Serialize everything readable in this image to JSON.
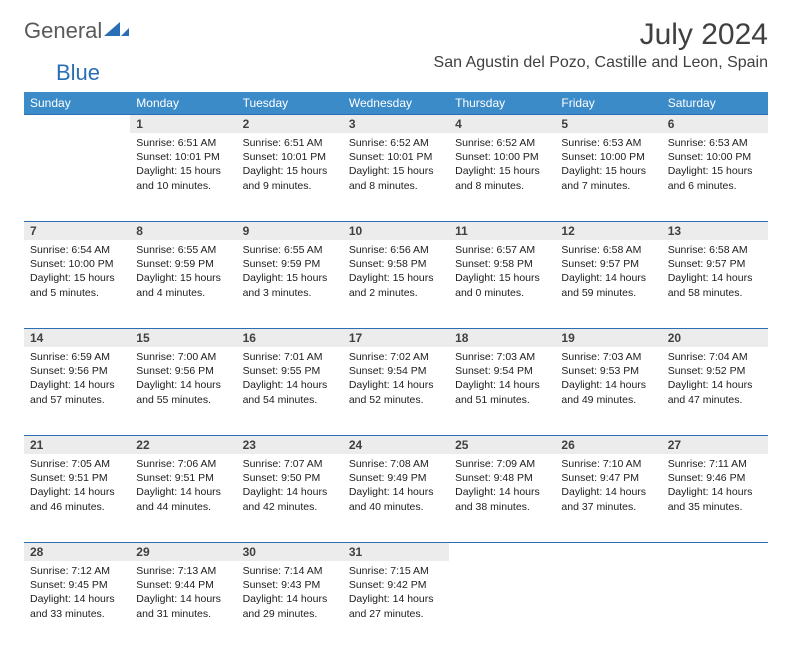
{
  "brand": {
    "text1": "General",
    "text2": "Blue"
  },
  "title": "July 2024",
  "location": "San Agustin del Pozo, Castille and Leon, Spain",
  "weekdays": [
    "Sunday",
    "Monday",
    "Tuesday",
    "Wednesday",
    "Thursday",
    "Friday",
    "Saturday"
  ],
  "colors": {
    "header_bg": "#3b8bc9",
    "daynum_bg": "#ececec",
    "rule": "#2a6fb5",
    "text": "#404040"
  },
  "weeks": [
    {
      "nums": [
        "",
        "1",
        "2",
        "3",
        "4",
        "5",
        "6"
      ],
      "cells": [
        null,
        {
          "sr": "6:51 AM",
          "ss": "10:01 PM",
          "dl": "15 hours and 10 minutes."
        },
        {
          "sr": "6:51 AM",
          "ss": "10:01 PM",
          "dl": "15 hours and 9 minutes."
        },
        {
          "sr": "6:52 AM",
          "ss": "10:01 PM",
          "dl": "15 hours and 8 minutes."
        },
        {
          "sr": "6:52 AM",
          "ss": "10:00 PM",
          "dl": "15 hours and 8 minutes."
        },
        {
          "sr": "6:53 AM",
          "ss": "10:00 PM",
          "dl": "15 hours and 7 minutes."
        },
        {
          "sr": "6:53 AM",
          "ss": "10:00 PM",
          "dl": "15 hours and 6 minutes."
        }
      ]
    },
    {
      "nums": [
        "7",
        "8",
        "9",
        "10",
        "11",
        "12",
        "13"
      ],
      "cells": [
        {
          "sr": "6:54 AM",
          "ss": "10:00 PM",
          "dl": "15 hours and 5 minutes."
        },
        {
          "sr": "6:55 AM",
          "ss": "9:59 PM",
          "dl": "15 hours and 4 minutes."
        },
        {
          "sr": "6:55 AM",
          "ss": "9:59 PM",
          "dl": "15 hours and 3 minutes."
        },
        {
          "sr": "6:56 AM",
          "ss": "9:58 PM",
          "dl": "15 hours and 2 minutes."
        },
        {
          "sr": "6:57 AM",
          "ss": "9:58 PM",
          "dl": "15 hours and 0 minutes."
        },
        {
          "sr": "6:58 AM",
          "ss": "9:57 PM",
          "dl": "14 hours and 59 minutes."
        },
        {
          "sr": "6:58 AM",
          "ss": "9:57 PM",
          "dl": "14 hours and 58 minutes."
        }
      ]
    },
    {
      "nums": [
        "14",
        "15",
        "16",
        "17",
        "18",
        "19",
        "20"
      ],
      "cells": [
        {
          "sr": "6:59 AM",
          "ss": "9:56 PM",
          "dl": "14 hours and 57 minutes."
        },
        {
          "sr": "7:00 AM",
          "ss": "9:56 PM",
          "dl": "14 hours and 55 minutes."
        },
        {
          "sr": "7:01 AM",
          "ss": "9:55 PM",
          "dl": "14 hours and 54 minutes."
        },
        {
          "sr": "7:02 AM",
          "ss": "9:54 PM",
          "dl": "14 hours and 52 minutes."
        },
        {
          "sr": "7:03 AM",
          "ss": "9:54 PM",
          "dl": "14 hours and 51 minutes."
        },
        {
          "sr": "7:03 AM",
          "ss": "9:53 PM",
          "dl": "14 hours and 49 minutes."
        },
        {
          "sr": "7:04 AM",
          "ss": "9:52 PM",
          "dl": "14 hours and 47 minutes."
        }
      ]
    },
    {
      "nums": [
        "21",
        "22",
        "23",
        "24",
        "25",
        "26",
        "27"
      ],
      "cells": [
        {
          "sr": "7:05 AM",
          "ss": "9:51 PM",
          "dl": "14 hours and 46 minutes."
        },
        {
          "sr": "7:06 AM",
          "ss": "9:51 PM",
          "dl": "14 hours and 44 minutes."
        },
        {
          "sr": "7:07 AM",
          "ss": "9:50 PM",
          "dl": "14 hours and 42 minutes."
        },
        {
          "sr": "7:08 AM",
          "ss": "9:49 PM",
          "dl": "14 hours and 40 minutes."
        },
        {
          "sr": "7:09 AM",
          "ss": "9:48 PM",
          "dl": "14 hours and 38 minutes."
        },
        {
          "sr": "7:10 AM",
          "ss": "9:47 PM",
          "dl": "14 hours and 37 minutes."
        },
        {
          "sr": "7:11 AM",
          "ss": "9:46 PM",
          "dl": "14 hours and 35 minutes."
        }
      ]
    },
    {
      "nums": [
        "28",
        "29",
        "30",
        "31",
        "",
        "",
        ""
      ],
      "cells": [
        {
          "sr": "7:12 AM",
          "ss": "9:45 PM",
          "dl": "14 hours and 33 minutes."
        },
        {
          "sr": "7:13 AM",
          "ss": "9:44 PM",
          "dl": "14 hours and 31 minutes."
        },
        {
          "sr": "7:14 AM",
          "ss": "9:43 PM",
          "dl": "14 hours and 29 minutes."
        },
        {
          "sr": "7:15 AM",
          "ss": "9:42 PM",
          "dl": "14 hours and 27 minutes."
        },
        null,
        null,
        null
      ]
    }
  ],
  "labels": {
    "sunrise": "Sunrise:",
    "sunset": "Sunset:",
    "daylight": "Daylight:"
  }
}
